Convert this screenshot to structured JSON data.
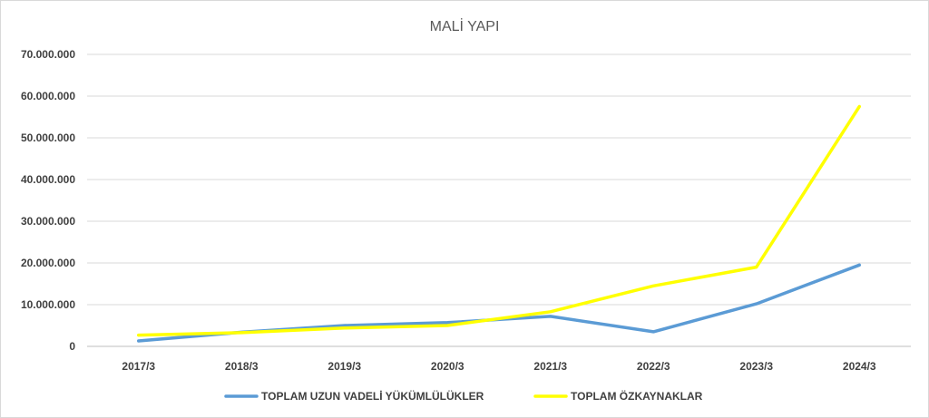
{
  "chart_data": {
    "type": "line",
    "title": "MALİ YAPI",
    "xlabel": "",
    "ylabel": "",
    "categories": [
      "2017/3",
      "2018/3",
      "2019/3",
      "2020/3",
      "2021/3",
      "2022/3",
      "2023/3",
      "2024/3"
    ],
    "ylim": [
      0,
      70000000
    ],
    "yticks": [
      0,
      10000000,
      20000000,
      30000000,
      40000000,
      50000000,
      60000000,
      70000000
    ],
    "ytick_labels": [
      "0",
      "10.000.000",
      "20.000.000",
      "30.000.000",
      "40.000.000",
      "50.000.000",
      "60.000.000",
      "70.000.000"
    ],
    "grid": true,
    "legend_position": "bottom",
    "series": [
      {
        "name": "TOPLAM UZUN VADELİ YÜKÜMLÜLÜKLER",
        "color": "#5b9bd5",
        "values": [
          1300000,
          3400000,
          5000000,
          5700000,
          7200000,
          3500000,
          10200000,
          19500000
        ]
      },
      {
        "name": "TOPLAM ÖZKAYNAKLAR",
        "color": "#ffff00",
        "values": [
          2700000,
          3300000,
          4400000,
          5000000,
          8300000,
          14500000,
          19000000,
          57500000
        ]
      }
    ]
  }
}
